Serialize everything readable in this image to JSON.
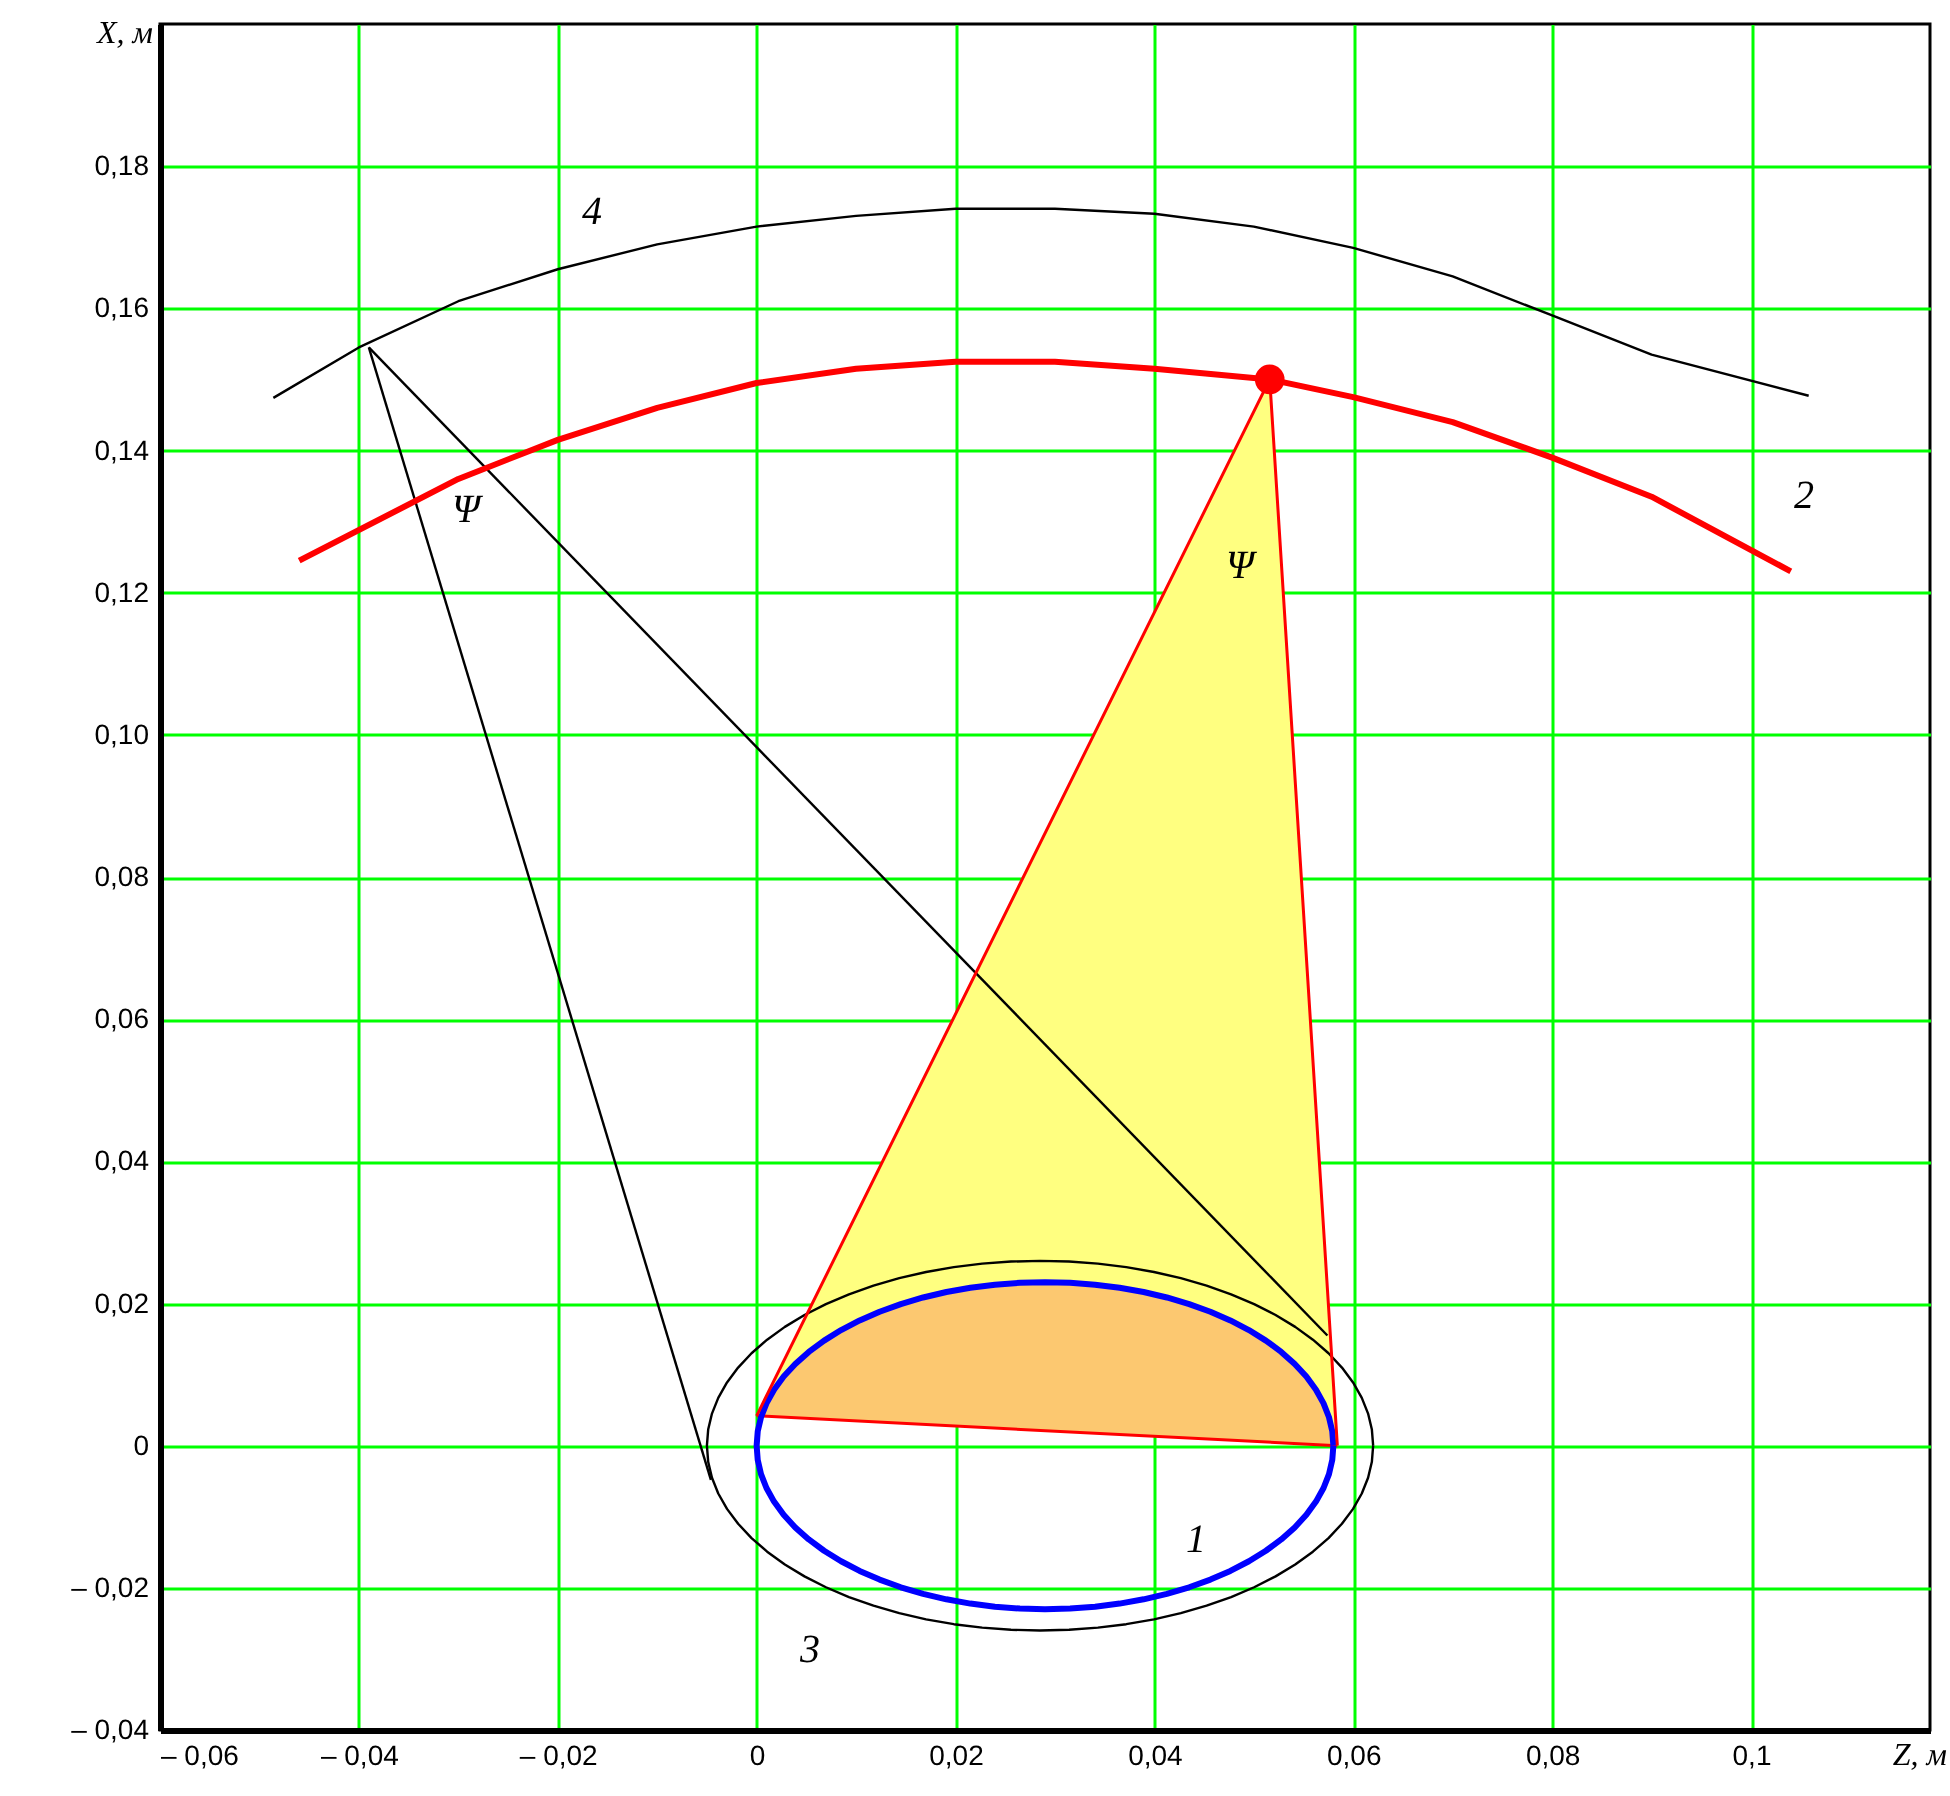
{
  "chart_data": {
    "type": "line",
    "xlabel": "Z, м",
    "ylabel": "X, м",
    "xlim": [
      -0.06,
      0.118
    ],
    "ylim": [
      -0.04,
      0.2
    ],
    "xticks": [
      {
        "value": -0.06,
        "label": "– 0,06"
      },
      {
        "value": -0.04,
        "label": "– 0,04"
      },
      {
        "value": -0.02,
        "label": "– 0,02"
      },
      0,
      {
        "value": 0.02,
        "label": "0,02"
      },
      {
        "value": 0.04,
        "label": "0,04"
      },
      {
        "value": 0.06,
        "label": "0,06"
      },
      {
        "value": 0.08,
        "label": "0,08"
      },
      {
        "value": 0.1,
        "label": "0,1"
      }
    ],
    "yticks": [
      {
        "value": -0.04,
        "label": "– 0,04"
      },
      {
        "value": -0.02,
        "label": "– 0,02"
      },
      0,
      {
        "value": 0.02,
        "label": "0,02"
      },
      {
        "value": 0.04,
        "label": "0,04"
      },
      {
        "value": 0.06,
        "label": "0,06"
      },
      {
        "value": 0.08,
        "label": "0,08"
      },
      {
        "value": 0.1,
        "label": "0,10"
      },
      {
        "value": 0.12,
        "label": "0,12"
      },
      {
        "value": 0.14,
        "label": "0,14"
      },
      {
        "value": 0.16,
        "label": "0,16"
      },
      {
        "value": 0.18,
        "label": "0,18"
      }
    ],
    "grid": true,
    "series": [
      {
        "color": "#000000",
        "x": [
          -0.039,
          -0.0046
        ],
        "values": [
          0.1545,
          -0.0048
        ]
      },
      {
        "color": "#000000",
        "x": [
          -0.039,
          0.0574
        ],
        "values": [
          0.1545,
          0.0155
        ]
      },
      {
        "color": "#ff0000",
        "x": [
          -0.046,
          -0.03,
          -0.02,
          -0.01,
          0,
          0.01,
          0.02,
          0.03,
          0.04,
          0.0516,
          0.06,
          0.07,
          0.08,
          0.09,
          0.104
        ],
        "values": [
          0.1245,
          0.136,
          0.1415,
          0.146,
          0.1495,
          0.1515,
          0.1525,
          0.1525,
          0.1515,
          0.15,
          0.1475,
          0.144,
          0.139,
          0.1335,
          0.123
        ]
      },
      {
        "color": "#000000",
        "x": [
          -0.0486,
          -0.04,
          -0.03,
          -0.02,
          -0.01,
          0,
          0.01,
          0.02,
          0.03,
          0.04,
          0.05,
          0.06,
          0.07,
          0.08,
          0.09,
          0.1058
        ],
        "values": [
          0.1474,
          0.1545,
          0.161,
          0.1655,
          0.169,
          0.1715,
          0.173,
          0.174,
          0.174,
          0.1733,
          0.1715,
          0.1685,
          0.1645,
          0.159,
          0.1535,
          0.1477
        ]
      },
      {
        "color": "#ff0000",
        "x": [
          0,
          0.0516,
          0.0584
        ],
        "values": [
          0.0042,
          0.15,
          0
        ]
      },
      {
        "type": "scatter",
        "color": "#ff0000",
        "x": [
          0.0516
        ],
        "values": [
          0.15
        ]
      }
    ],
    "annotations": [
      "1",
      "2",
      "3",
      "4",
      "Ψ",
      "Ψ"
    ]
  }
}
